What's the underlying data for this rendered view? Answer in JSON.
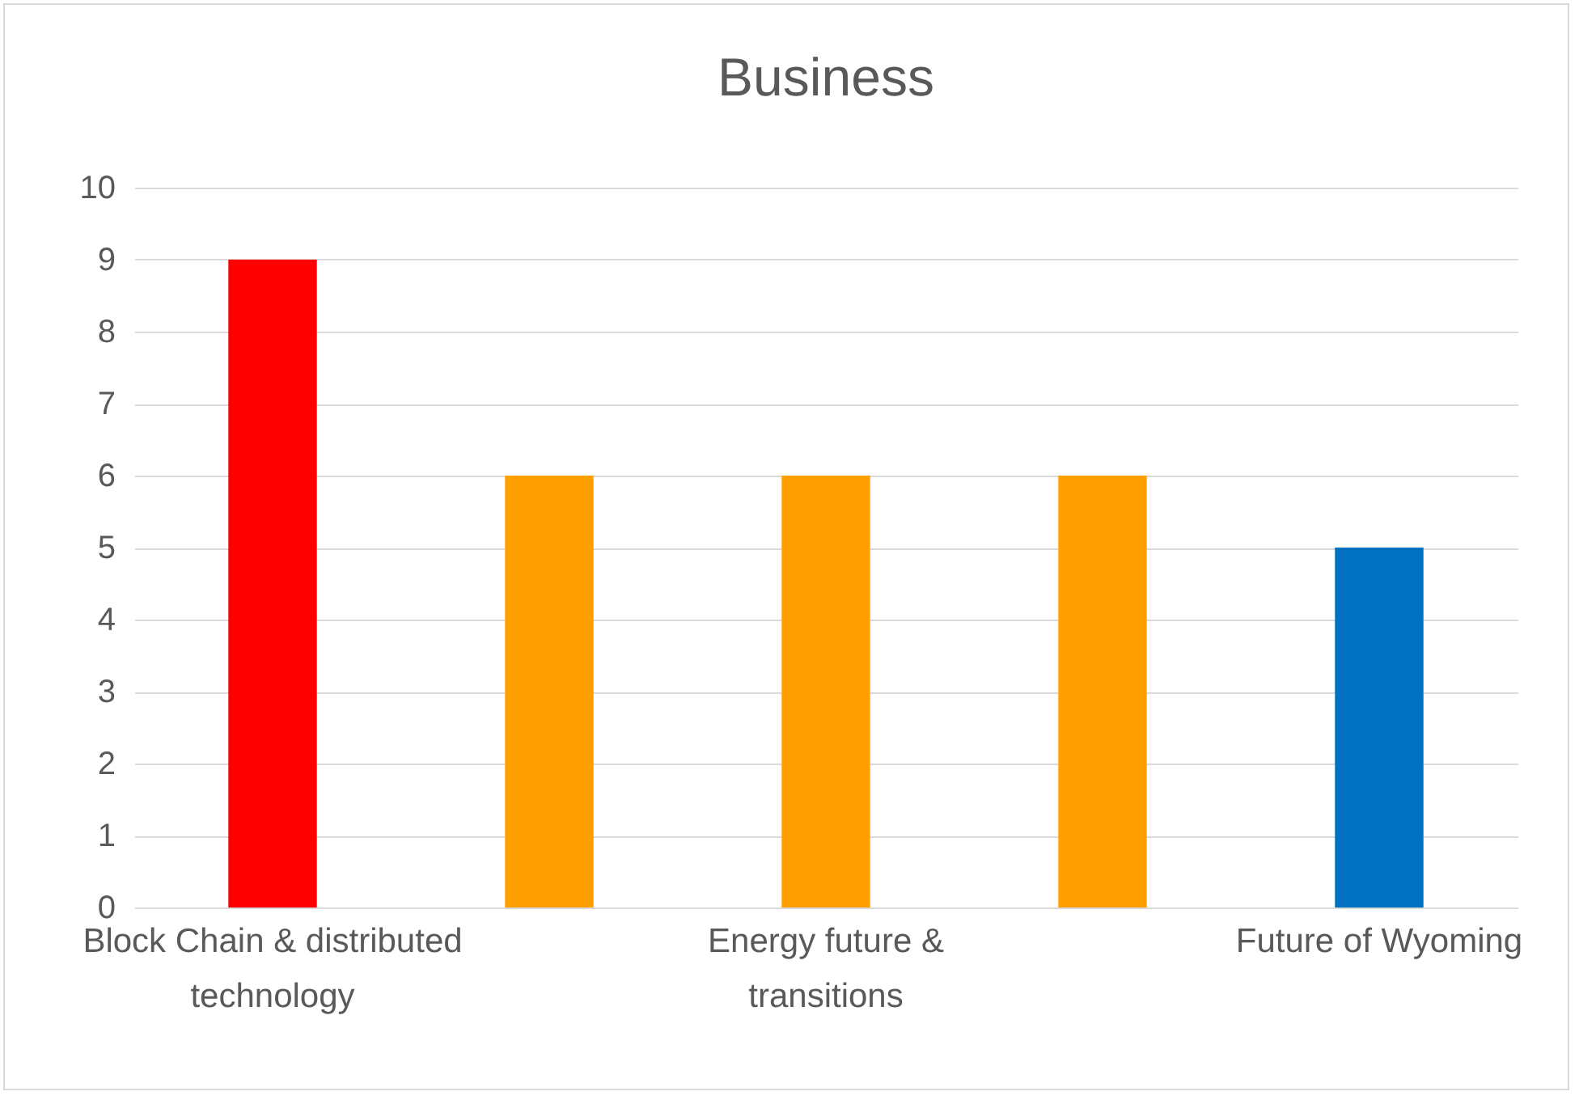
{
  "chart_data": {
    "type": "bar",
    "title": "Business",
    "categories": [
      "Block Chain & distributed technology",
      null,
      "Energy future & transitions",
      null,
      "Future of Wyoming"
    ],
    "values": [
      9,
      6,
      6,
      6,
      5
    ],
    "colors": [
      "#ff0000",
      "#ffa000",
      "#ffa000",
      "#ffa000",
      "#0070c0"
    ],
    "ylim": [
      0,
      10
    ],
    "yticks": [
      0,
      1,
      2,
      3,
      4,
      5,
      6,
      7,
      8,
      9,
      10
    ],
    "grid": "y"
  }
}
